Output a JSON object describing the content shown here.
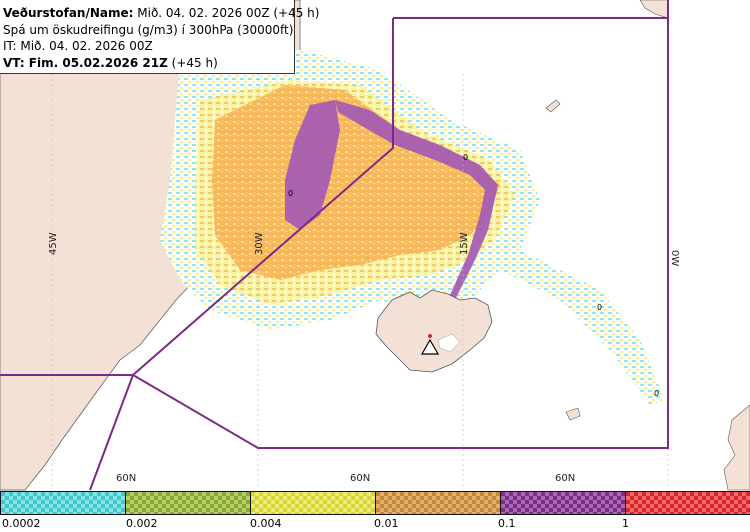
{
  "header": {
    "line1_bold": "Veðurstofan/Name:",
    "line1_rest": " Mið. 04. 02. 2026 00Z (+45 h)",
    "line2": "Spá um öskudreifingu (g/m3) í 300hPa (30000ft)",
    "line3": "IT: Mið. 04. 02. 2026 00Z",
    "line4_bold": "VT: Fim. 05.02.2026 21Z",
    "line4_rest": " (+45 h)"
  },
  "map": {
    "longitude_labels": [
      "45W",
      "30W",
      "15W",
      "0W"
    ],
    "latitude_labels": [
      "60N",
      "60N",
      "60N"
    ],
    "contour_labels": [
      "0",
      "0",
      "0",
      "0"
    ],
    "colors": {
      "land": "#f3e1d5",
      "sea": "#ffffff",
      "boundary": "#7b2a86",
      "ash_light_cyan": "#88e8ec",
      "ash_yellow": "#f5f08a",
      "ash_orange": "#f7b35a",
      "ash_purple": "#a35ab4"
    },
    "volcano_icon": "triangle-warning-icon"
  },
  "legend": {
    "labels": [
      "0.0002",
      "0.002",
      "0.004",
      "0.01",
      "0.1",
      "1"
    ],
    "colors": [
      "#3fc9cf",
      "#8aa830",
      "#d7d335",
      "#c88734",
      "#7a2f86",
      "#d9262b"
    ],
    "colors_alt": [
      "#8ae0e3",
      "#b7cd6b",
      "#ecea7a",
      "#e0b172",
      "#a869b0",
      "#ee6a6d"
    ]
  }
}
